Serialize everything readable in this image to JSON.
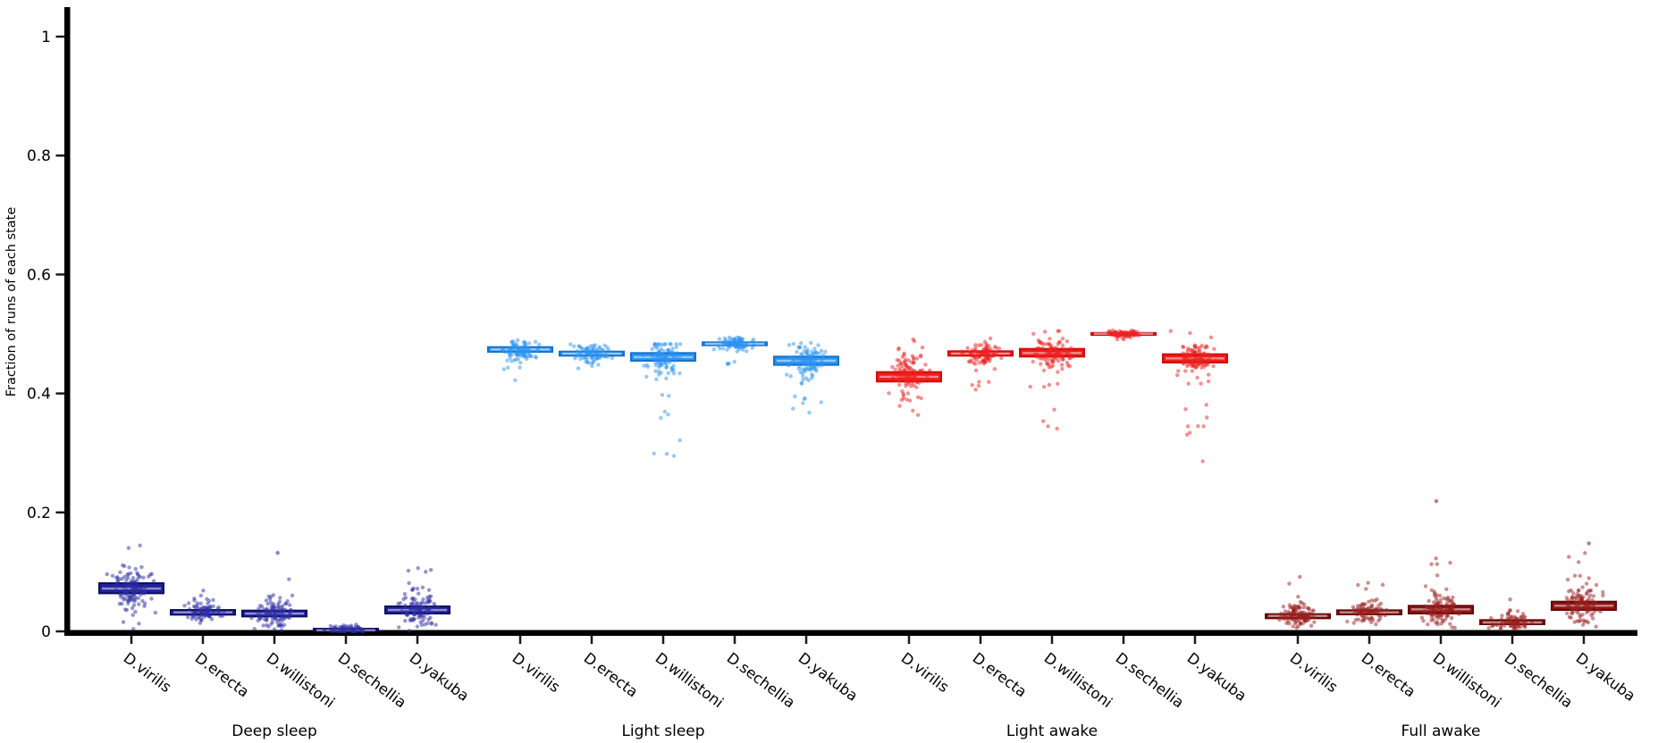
{
  "chart_data": {
    "type": "boxplot_strip",
    "title": "",
    "ylabel": "Fraction of runs of each state",
    "xlabel": "",
    "ylim": [
      0,
      1.05
    ],
    "ytick_values": [
      0,
      0.2,
      0.4,
      0.6,
      0.8,
      1
    ],
    "ytick_labels": [
      "0",
      "0.2",
      "0.4",
      "0.6",
      "0.8",
      "1"
    ],
    "legend": "none",
    "grid": false,
    "groups": [
      {
        "label": "Deep sleep",
        "box_color": "#22229c",
        "edge_color": "#0d0d5e",
        "point_color": "#2e2ea6",
        "species": [
          {
            "label": "D.virilis",
            "median": 0.072,
            "q1": 0.064,
            "q3": 0.081,
            "lo": 0.004,
            "hi": 0.155,
            "n": 115,
            "outliers": []
          },
          {
            "label": "D.erecta",
            "median": 0.032,
            "q1": 0.028,
            "q3": 0.036,
            "lo": 0.012,
            "hi": 0.072,
            "n": 85,
            "outliers": []
          },
          {
            "label": "D.willistoni",
            "median": 0.03,
            "q1": 0.025,
            "q3": 0.035,
            "lo": 0.001,
            "hi": 0.092,
            "n": 110,
            "outliers": [
              0.132
            ]
          },
          {
            "label": "D.sechellia",
            "median": 0.002,
            "q1": 0.001,
            "q3": 0.0045,
            "lo": 0.0,
            "hi": 0.013,
            "n": 70,
            "outliers": []
          },
          {
            "label": "D.yakuba",
            "median": 0.036,
            "q1": 0.03,
            "q3": 0.042,
            "lo": 0.001,
            "hi": 0.112,
            "n": 110,
            "outliers": []
          }
        ]
      },
      {
        "label": "Light sleep",
        "box_color": "#2d93f2",
        "edge_color": "#1273cc",
        "point_color": "#2d93f2",
        "species": [
          {
            "label": "D.virilis",
            "median": 0.474,
            "q1": 0.47,
            "q3": 0.478,
            "lo": 0.41,
            "hi": 0.492,
            "n": 95,
            "outliers": []
          },
          {
            "label": "D.erecta",
            "median": 0.467,
            "q1": 0.4635,
            "q3": 0.4705,
            "lo": 0.432,
            "hi": 0.487,
            "n": 85,
            "outliers": []
          },
          {
            "label": "D.willistoni",
            "median": 0.461,
            "q1": 0.455,
            "q3": 0.468,
            "lo": 0.292,
            "hi": 0.483,
            "n": 105,
            "outliers": []
          },
          {
            "label": "D.sechellia",
            "median": 0.4835,
            "q1": 0.481,
            "q3": 0.486,
            "lo": 0.449,
            "hi": 0.494,
            "n": 95,
            "outliers": []
          },
          {
            "label": "D.yakuba",
            "median": 0.455,
            "q1": 0.448,
            "q3": 0.462,
            "lo": 0.362,
            "hi": 0.487,
            "n": 105,
            "outliers": []
          }
        ]
      },
      {
        "label": "Light awake",
        "box_color": "#f11b1b",
        "edge_color": "#cc0d0d",
        "point_color": "#ee2222",
        "species": [
          {
            "label": "D.virilis",
            "median": 0.428,
            "q1": 0.42,
            "q3": 0.436,
            "lo": 0.352,
            "hi": 0.502,
            "n": 115,
            "outliers": []
          },
          {
            "label": "D.erecta",
            "median": 0.467,
            "q1": 0.4635,
            "q3": 0.471,
            "lo": 0.398,
            "hi": 0.502,
            "n": 95,
            "outliers": []
          },
          {
            "label": "D.willistoni",
            "median": 0.468,
            "q1": 0.462,
            "q3": 0.475,
            "lo": 0.332,
            "hi": 0.505,
            "n": 115,
            "outliers": []
          },
          {
            "label": "D.sechellia",
            "median": 0.5005,
            "q1": 0.4993,
            "q3": 0.5018,
            "lo": 0.488,
            "hi": 0.506,
            "n": 85,
            "outliers": []
          },
          {
            "label": "D.yakuba",
            "median": 0.459,
            "q1": 0.452,
            "q3": 0.466,
            "lo": 0.282,
            "hi": 0.505,
            "n": 115,
            "outliers": []
          }
        ]
      },
      {
        "label": "Full awake",
        "box_color": "#8e1313",
        "edge_color": "#600909",
        "point_color": "#9b2020",
        "species": [
          {
            "label": "D.virilis",
            "median": 0.026,
            "q1": 0.022,
            "q3": 0.029,
            "lo": 0.006,
            "hi": 0.092,
            "n": 115,
            "outliers": []
          },
          {
            "label": "D.erecta",
            "median": 0.032,
            "q1": 0.0285,
            "q3": 0.0355,
            "lo": 0.012,
            "hi": 0.085,
            "n": 95,
            "outliers": []
          },
          {
            "label": "D.willistoni",
            "median": 0.037,
            "q1": 0.03,
            "q3": 0.043,
            "lo": 0.006,
            "hi": 0.125,
            "n": 115,
            "outliers": [
              0.219
            ]
          },
          {
            "label": "D.sechellia",
            "median": 0.015,
            "q1": 0.012,
            "q3": 0.019,
            "lo": 0.003,
            "hi": 0.056,
            "n": 80,
            "outliers": []
          },
          {
            "label": "D.yakuba",
            "median": 0.043,
            "q1": 0.036,
            "q3": 0.05,
            "lo": 0.008,
            "hi": 0.15,
            "n": 115,
            "outliers": [
              0.148
            ]
          }
        ]
      }
    ],
    "colors": {
      "axis": "#000000",
      "tick": "#1a1a1a",
      "background": "#ffffff",
      "median_stripe": "rgba(255,255,255,0.5)"
    }
  }
}
